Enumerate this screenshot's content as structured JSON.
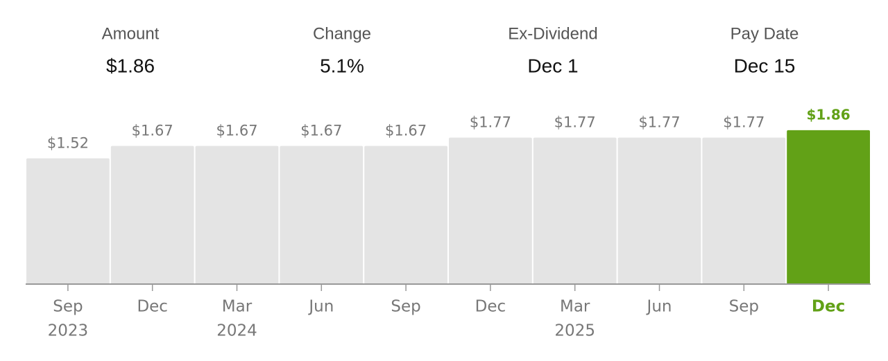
{
  "stats": [
    {
      "label": "Amount",
      "value": "$1.86"
    },
    {
      "label": "Change",
      "value": "5.1%"
    },
    {
      "label": "Ex-Dividend",
      "value": "Dec 1"
    },
    {
      "label": "Pay Date",
      "value": "Dec 15"
    }
  ],
  "chart_data": {
    "type": "bar",
    "categories": [
      "Sep",
      "Dec",
      "Mar",
      "Jun",
      "Sep",
      "Dec",
      "Mar",
      "Jun",
      "Sep",
      "Dec"
    ],
    "category_years": [
      "2023",
      null,
      "2024",
      null,
      null,
      null,
      "2025",
      null,
      null,
      null
    ],
    "values": [
      1.52,
      1.67,
      1.67,
      1.67,
      1.67,
      1.77,
      1.77,
      1.77,
      1.77,
      1.86
    ],
    "value_labels": [
      "$1.52",
      "$1.67",
      "$1.67",
      "$1.67",
      "$1.67",
      "$1.77",
      "$1.77",
      "$1.77",
      "$1.77",
      "$1.86"
    ],
    "color": "#e4e4e4",
    "highlight_index": 9,
    "highlight_color": "#62a117",
    "ylim": [
      0,
      2.0
    ]
  }
}
